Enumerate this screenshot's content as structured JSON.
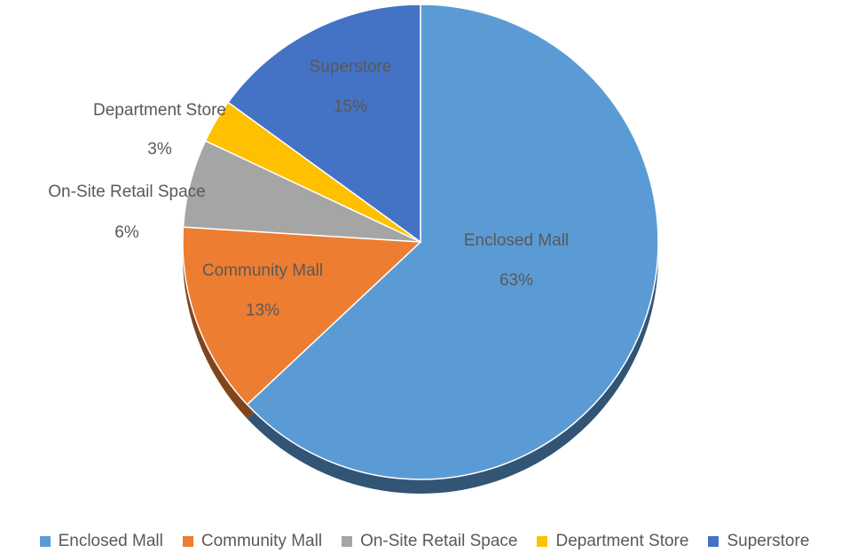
{
  "chart_data": {
    "type": "pie",
    "slices": [
      {
        "label": "Enclosed Mall",
        "value": 63,
        "value_label": "63%",
        "color": "#5B9BD5"
      },
      {
        "label": "Community Mall",
        "value": 13,
        "value_label": "13%",
        "color": "#ED7D31"
      },
      {
        "label": "On-Site Retail Space",
        "value": 6,
        "value_label": "6%",
        "color": "#A5A5A5"
      },
      {
        "label": "Department Store",
        "value": 3,
        "value_label": "3%",
        "color": "#FFC000"
      },
      {
        "label": "Superstore",
        "value": 15,
        "value_label": "15%",
        "color": "#4472C4"
      }
    ],
    "legend_position": "bottom",
    "style": "3d-tilted pie with drop shadow"
  }
}
